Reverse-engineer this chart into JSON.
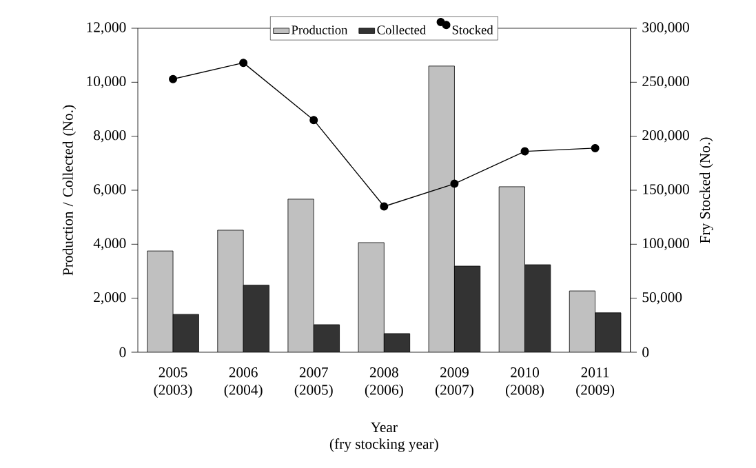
{
  "chart_data": {
    "type": "bar",
    "categories": [
      "2005 (2003)",
      "2006 (2004)",
      "2007 (2005)",
      "2008 (2006)",
      "2009 (2007)",
      "2010 (2008)",
      "2011 (2009)"
    ],
    "xlabel": "Year",
    "ylabel": "Production / Collected (No.)",
    "y2label": "Fry Stocked (No.)",
    "annotations": [
      "(fry stocking year)"
    ],
    "series": [
      {
        "name": "Production",
        "color": "#c0c0c0",
        "values": [
          3750,
          4520,
          5670,
          4060,
          10600,
          6130,
          2270
        ]
      },
      {
        "name": "Collected",
        "color": "#333333",
        "values": [
          1400,
          2480,
          1020,
          690,
          3190,
          3240,
          1460
        ]
      },
      {
        "name": "Stocked",
        "type": "line",
        "axis": "y2",
        "color": "#000000",
        "values": [
          253000,
          268000,
          215000,
          135000,
          156000,
          186000,
          189000
        ]
      }
    ],
    "ylim": [
      0,
      12000
    ],
    "yticks": [
      0,
      {
        "value": 2000,
        "label": "2,000"
      },
      {
        "value": 4000,
        "label": "4,000"
      },
      {
        "value": 6000,
        "label": "6,000"
      },
      {
        "value": 8000,
        "label": "8,000"
      },
      {
        "value": 10000,
        "label": "10,000"
      },
      {
        "value": 12000,
        "label": "12,000"
      }
    ],
    "y2lim": [
      0,
      300000
    ],
    "y2ticks": [
      0,
      {
        "value": 50000,
        "label": "50,000"
      },
      {
        "value": 100000,
        "label": "100,000"
      },
      {
        "value": 150000,
        "label": "150,000"
      },
      {
        "value": 200000,
        "label": "200,000"
      },
      {
        "value": 250000,
        "label": "250,000"
      },
      {
        "value": 300000,
        "label": "300,000"
      }
    ],
    "legend": "top",
    "marker": "circle",
    "line_style": "solid",
    "grid": false
  }
}
